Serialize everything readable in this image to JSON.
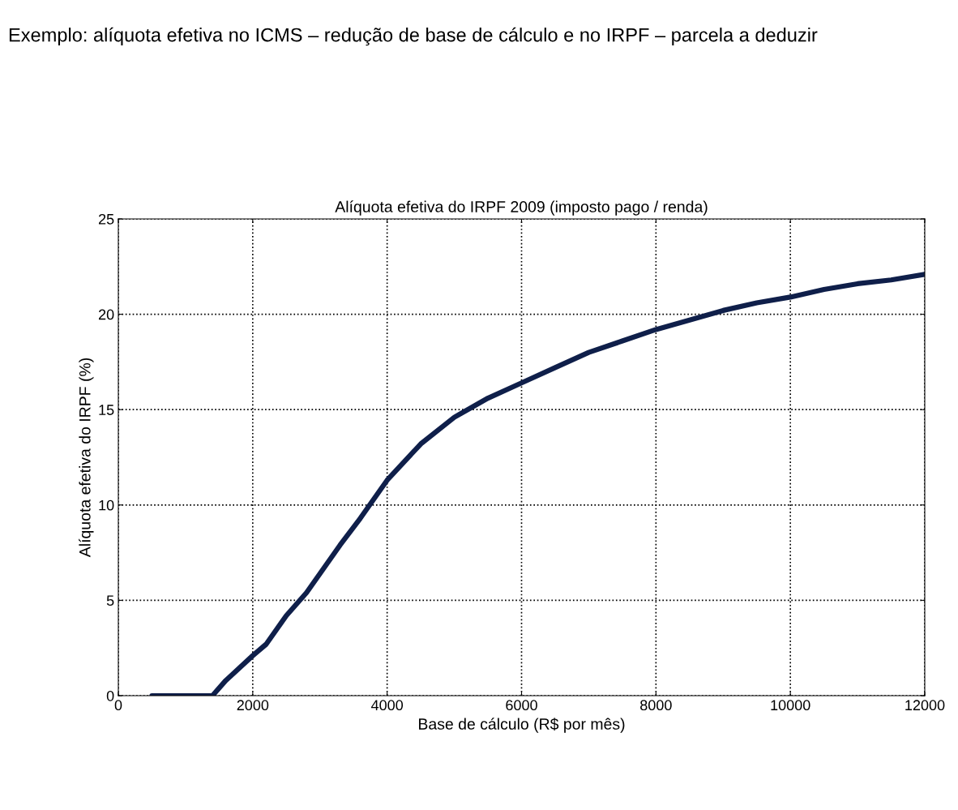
{
  "chart_data": {
    "type": "line",
    "title": "Alíquota efetiva do IRPF 2009 (imposto pago / renda)",
    "subtitle": "Exemplo: alíquota efetiva no ICMS – redução de base de cálculo e no IRPF – parcela a deduzir",
    "xlabel": "Base de cálculo (R$ por mês)",
    "ylabel": "Alíquota efetiva do IRPF (%)",
    "x": [
      500,
      1400,
      1600,
      2000,
      2200,
      2500,
      2800,
      3000,
      3300,
      3600,
      4000,
      4500,
      5000,
      5500,
      6000,
      6500,
      7000,
      7500,
      8000,
      8500,
      9000,
      9500,
      10000,
      10500,
      11000,
      11500,
      12000
    ],
    "series": [
      {
        "color": "#0f1f4a",
        "values": [
          0,
          0,
          0.8,
          2.1,
          2.7,
          4.2,
          5.4,
          6.4,
          7.9,
          9.3,
          11.3,
          13.2,
          14.6,
          15.6,
          16.4,
          17.2,
          18.0,
          18.6,
          19.2,
          19.7,
          20.2,
          20.6,
          20.9,
          21.3,
          21.6,
          21.8,
          22.1
        ]
      }
    ],
    "xlim": [
      0,
      12000
    ],
    "xticks": [
      0,
      2000,
      4000,
      6000,
      8000,
      10000,
      12000
    ],
    "ylim": [
      0,
      25
    ],
    "yticks": [
      0,
      5,
      10,
      15,
      20,
      25
    ],
    "grid": true,
    "line_style": "solid"
  }
}
